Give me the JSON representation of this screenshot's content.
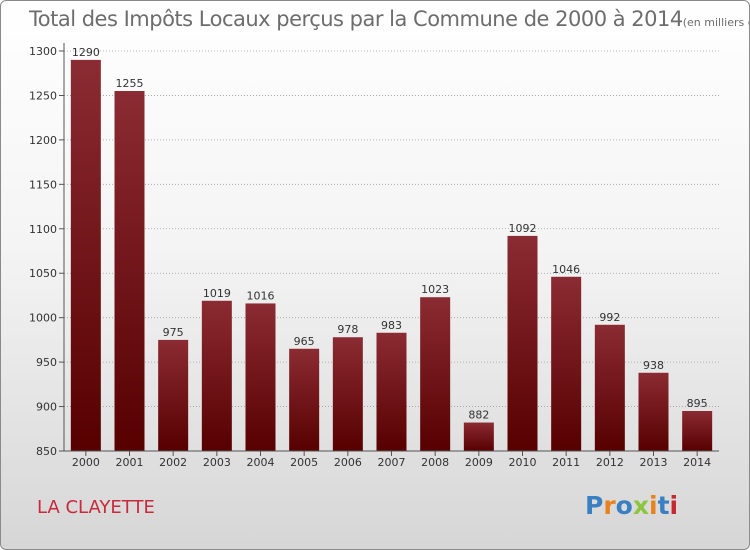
{
  "title": "Total des Impôts Locaux perçus par la Commune de 2000 à 2014",
  "unit": "(en milliers d'€)",
  "commune": "LA CLAYETTE",
  "logo": {
    "text": "Proxiti",
    "colors": [
      "#3a7fc1",
      "#e8821e",
      "#3a7fc1",
      "#8cc63f",
      "#e8821e",
      "#3a7fc1",
      "#c6282f"
    ]
  },
  "colors": {
    "bar_light": "#8b2b33",
    "bar_dark": "#570000",
    "grid": "#a0a0a0",
    "axis": "#555555",
    "commune": "#c8293b"
  },
  "chart_data": {
    "type": "bar",
    "title": "Total des Impôts Locaux perçus par la Commune de 2000 à 2014",
    "xlabel": "",
    "ylabel": "",
    "categories": [
      "2000",
      "2001",
      "2002",
      "2003",
      "2004",
      "2005",
      "2006",
      "2007",
      "2008",
      "2009",
      "2010",
      "2011",
      "2012",
      "2013",
      "2014"
    ],
    "values": [
      1290,
      1255,
      975,
      1019,
      1016,
      965,
      978,
      983,
      1023,
      882,
      1092,
      1046,
      992,
      938,
      895
    ],
    "ylim": [
      850,
      1300
    ],
    "yticks": [
      850,
      900,
      950,
      1000,
      1050,
      1100,
      1150,
      1200,
      1250,
      1300
    ],
    "grid": true
  }
}
